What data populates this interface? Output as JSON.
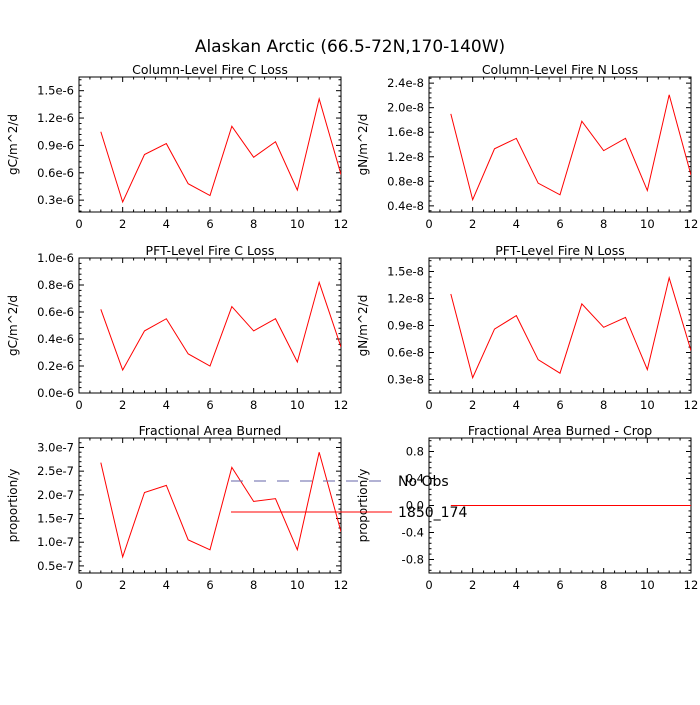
{
  "title": "Alaskan Arctic (66.5-72N,170-140W)",
  "colors": {
    "series": "#ff0000",
    "obs": "#6666aa",
    "axis": "#000000"
  },
  "chart_data": [
    {
      "type": "line",
      "title": "Column-Level Fire C Loss",
      "ylabel": "gC/m^2/d",
      "xlim": [
        0,
        12
      ],
      "ylim": [
        1.7e-07,
        1.65e-06
      ],
      "xticks": [
        0,
        2,
        4,
        6,
        8,
        10,
        12
      ],
      "yticks": [
        3e-07,
        6e-07,
        9e-07,
        1.2e-06,
        1.5e-06
      ],
      "ytick_labels": [
        "0.3e-6",
        "0.6e-6",
        "0.9e-6",
        "1.2e-6",
        "1.5e-6"
      ],
      "x": [
        1,
        2,
        3,
        4,
        5,
        6,
        7,
        8,
        9,
        10,
        11,
        12
      ],
      "series": [
        {
          "name": "1850_174",
          "values": [
            1.05e-06,
            2.8e-07,
            8e-07,
            9.2e-07,
            4.8e-07,
            3.5e-07,
            1.11e-06,
            7.7e-07,
            9.4e-07,
            4.1e-07,
            1.41e-06,
            5.8e-07
          ]
        }
      ]
    },
    {
      "type": "line",
      "title": "Column-Level Fire N Loss",
      "ylabel": "gN/m^2/d",
      "xlim": [
        0,
        12
      ],
      "ylim": [
        3e-09,
        2.5e-08
      ],
      "xticks": [
        0,
        2,
        4,
        6,
        8,
        10,
        12
      ],
      "yticks": [
        4e-09,
        8e-09,
        1.2e-08,
        1.6e-08,
        2e-08,
        2.4e-08
      ],
      "ytick_labels": [
        "0.4e-8",
        "0.8e-8",
        "1.2e-8",
        "1.6e-8",
        "2.0e-8",
        "2.4e-8"
      ],
      "x": [
        1,
        2,
        3,
        4,
        5,
        6,
        7,
        8,
        9,
        10,
        11,
        12
      ],
      "series": [
        {
          "name": "1850_174",
          "values": [
            1.9e-08,
            5e-09,
            1.33e-08,
            1.5e-08,
            7.7e-09,
            5.8e-09,
            1.78e-08,
            1.3e-08,
            1.5e-08,
            6.5e-09,
            2.21e-08,
            9e-09
          ]
        }
      ]
    },
    {
      "type": "line",
      "title": "PFT-Level Fire C Loss",
      "ylabel": "gC/m^2/d",
      "xlim": [
        0,
        12
      ],
      "ylim": [
        0.0,
        1e-06
      ],
      "xticks": [
        0,
        2,
        4,
        6,
        8,
        10,
        12
      ],
      "yticks": [
        0.0,
        2e-07,
        4e-07,
        6e-07,
        8e-07,
        1e-06
      ],
      "ytick_labels": [
        "0.0e-6",
        "0.2e-6",
        "0.4e-6",
        "0.6e-6",
        "0.8e-6",
        "1.0e-6"
      ],
      "x": [
        1,
        2,
        3,
        4,
        5,
        6,
        7,
        8,
        9,
        10,
        11,
        12
      ],
      "series": [
        {
          "name": "1850_174",
          "values": [
            6.2e-07,
            1.7e-07,
            4.6e-07,
            5.5e-07,
            2.9e-07,
            2e-07,
            6.4e-07,
            4.6e-07,
            5.5e-07,
            2.3e-07,
            8.2e-07,
            3.4e-07
          ]
        }
      ]
    },
    {
      "type": "line",
      "title": "PFT-Level Fire N Loss",
      "ylabel": "gN/m^2/d",
      "xlim": [
        0,
        12
      ],
      "ylim": [
        1.5e-09,
        1.65e-08
      ],
      "xticks": [
        0,
        2,
        4,
        6,
        8,
        10,
        12
      ],
      "yticks": [
        3e-09,
        6e-09,
        9e-09,
        1.2e-08,
        1.5e-08
      ],
      "ytick_labels": [
        "0.3e-8",
        "0.6e-8",
        "0.9e-8",
        "1.2e-8",
        "1.5e-8"
      ],
      "x": [
        1,
        2,
        3,
        4,
        5,
        6,
        7,
        8,
        9,
        10,
        11,
        12
      ],
      "series": [
        {
          "name": "1850_174",
          "values": [
            1.25e-08,
            3.2e-09,
            8.6e-09,
            1.01e-08,
            5.2e-09,
            3.7e-09,
            1.14e-08,
            8.8e-09,
            9.9e-09,
            4.1e-09,
            1.43e-08,
            6.2e-09
          ]
        }
      ]
    },
    {
      "type": "line",
      "title": "Fractional Area Burned",
      "ylabel": "proportion/y",
      "xlim": [
        0,
        12
      ],
      "ylim": [
        3.5e-08,
        3.2e-07
      ],
      "xticks": [
        0,
        2,
        4,
        6,
        8,
        10,
        12
      ],
      "yticks": [
        5e-08,
        1e-07,
        1.5e-07,
        2e-07,
        2.5e-07,
        3e-07
      ],
      "ytick_labels": [
        "0.5e-7",
        "1.0e-7",
        "1.5e-7",
        "2.0e-7",
        "2.5e-7",
        "3.0e-7"
      ],
      "x": [
        1,
        2,
        3,
        4,
        5,
        6,
        7,
        8,
        9,
        10,
        11,
        12
      ],
      "series": [
        {
          "name": "1850_174",
          "values": [
            2.68e-07,
            6.9e-08,
            2.05e-07,
            2.2e-07,
            1.05e-07,
            8.4e-08,
            2.58e-07,
            1.86e-07,
            1.92e-07,
            8.4e-08,
            2.9e-07,
            1.22e-07
          ]
        }
      ]
    },
    {
      "type": "line",
      "title": "Fractional Area Burned - Crop",
      "ylabel": "proportion/y",
      "xlim": [
        0,
        12
      ],
      "ylim": [
        -1.0,
        1.0
      ],
      "xticks": [
        0,
        2,
        4,
        6,
        8,
        10,
        12
      ],
      "yticks": [
        -0.8,
        -0.4,
        0.0,
        0.4,
        0.8
      ],
      "ytick_labels": [
        "-0.8",
        "-0.4",
        "0.0",
        "0.4",
        "0.8"
      ],
      "x": [
        1,
        2,
        3,
        4,
        5,
        6,
        7,
        8,
        9,
        10,
        11,
        12
      ],
      "series": [
        {
          "name": "1850_174",
          "values": [
            0,
            0,
            0,
            0,
            0,
            0,
            0,
            0,
            0,
            0,
            0,
            0
          ]
        }
      ]
    }
  ],
  "legend": {
    "placement": "bottom-center",
    "entries": [
      {
        "label": "No Obs",
        "style": "dashed"
      },
      {
        "label": "1850_174",
        "style": "solid"
      }
    ]
  }
}
